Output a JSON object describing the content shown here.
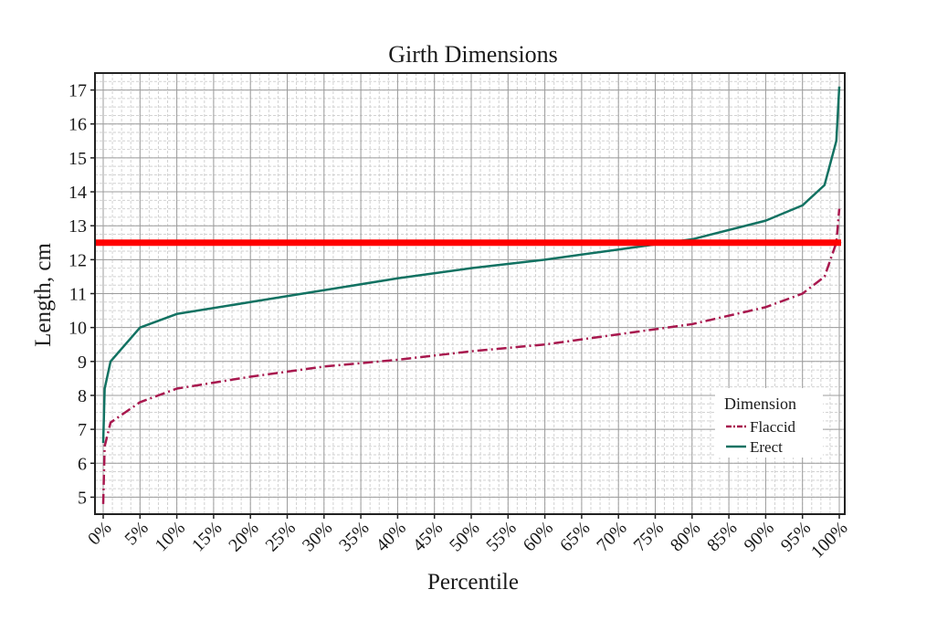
{
  "chart_data": {
    "type": "line",
    "title": "Girth Dimensions",
    "xlabel": "Percentile",
    "ylabel": "Length, cm",
    "xlim": [
      0,
      100
    ],
    "ylim": [
      4.5,
      17.5
    ],
    "x_ticks": [
      "0%",
      "5%",
      "10%",
      "15%",
      "20%",
      "25%",
      "30%",
      "35%",
      "40%",
      "45%",
      "50%",
      "55%",
      "60%",
      "65%",
      "70%",
      "75%",
      "80%",
      "85%",
      "90%",
      "95%",
      "100%"
    ],
    "y_ticks": [
      "5",
      "6",
      "7",
      "8",
      "9",
      "10",
      "11",
      "12",
      "13",
      "14",
      "15",
      "16",
      "17"
    ],
    "grid": true,
    "legend": {
      "title": "Dimension",
      "position": "lower-right"
    },
    "series": [
      {
        "name": "Flaccid",
        "color": "#a8184e",
        "style": "dash-dot",
        "points": [
          [
            0,
            4.8
          ],
          [
            0.2,
            6.5
          ],
          [
            1,
            7.2
          ],
          [
            5,
            7.8
          ],
          [
            10,
            8.2
          ],
          [
            20,
            8.55
          ],
          [
            30,
            8.85
          ],
          [
            40,
            9.05
          ],
          [
            50,
            9.3
          ],
          [
            60,
            9.5
          ],
          [
            70,
            9.8
          ],
          [
            80,
            10.1
          ],
          [
            90,
            10.6
          ],
          [
            95,
            11.0
          ],
          [
            98,
            11.5
          ],
          [
            99.6,
            12.5
          ],
          [
            100,
            13.5
          ]
        ]
      },
      {
        "name": "Erect",
        "color": "#127262",
        "style": "solid",
        "points": [
          [
            0,
            6.6
          ],
          [
            0.2,
            8.2
          ],
          [
            1,
            9.0
          ],
          [
            5,
            10.0
          ],
          [
            10,
            10.4
          ],
          [
            20,
            10.75
          ],
          [
            30,
            11.1
          ],
          [
            40,
            11.45
          ],
          [
            50,
            11.75
          ],
          [
            60,
            12.0
          ],
          [
            70,
            12.3
          ],
          [
            80,
            12.6
          ],
          [
            90,
            13.15
          ],
          [
            95,
            13.6
          ],
          [
            98,
            14.2
          ],
          [
            99.6,
            15.5
          ],
          [
            100,
            17.1
          ]
        ]
      }
    ],
    "reference_line": {
      "y": 12.5,
      "color": "#ff0000"
    }
  }
}
